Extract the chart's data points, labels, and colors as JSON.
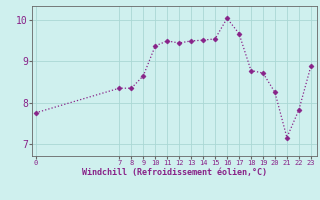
{
  "x": [
    0,
    7,
    8,
    9,
    10,
    11,
    12,
    13,
    14,
    15,
    16,
    17,
    18,
    19,
    20,
    21,
    22,
    23
  ],
  "y": [
    7.75,
    8.35,
    8.35,
    8.65,
    9.38,
    9.5,
    9.45,
    9.5,
    9.52,
    9.55,
    10.05,
    9.68,
    8.78,
    8.72,
    8.25,
    7.15,
    7.82,
    8.88
  ],
  "line_color": "#882288",
  "bg_color": "#cff0ee",
  "grid_color": "#aad8d4",
  "xlabel": "Windchill (Refroidissement éolien,°C)",
  "xlabel_color": "#882288",
  "tick_color": "#882288",
  "xticks": [
    0,
    7,
    8,
    9,
    10,
    11,
    12,
    13,
    14,
    15,
    16,
    17,
    18,
    19,
    20,
    21,
    22,
    23
  ],
  "yticks": [
    7,
    8,
    9,
    10
  ],
  "ylim": [
    6.7,
    10.35
  ],
  "xlim": [
    -0.3,
    23.5
  ]
}
